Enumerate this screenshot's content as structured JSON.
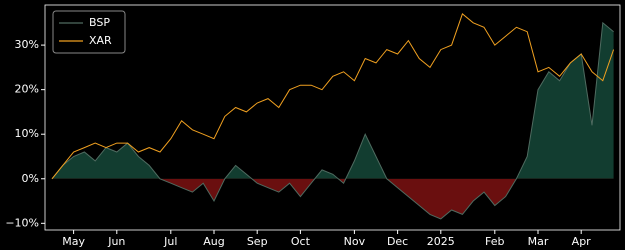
{
  "chart_data": {
    "type": "line",
    "categories": [
      null,
      null,
      "May",
      null,
      null,
      null,
      "Jun",
      null,
      null,
      null,
      null,
      "Jul",
      null,
      null,
      null,
      "Aug",
      null,
      null,
      null,
      "Sep",
      null,
      null,
      null,
      "Oct",
      null,
      null,
      null,
      null,
      "Nov",
      null,
      null,
      null,
      "Dec",
      null,
      null,
      null,
      "2025",
      null,
      null,
      null,
      null,
      "Feb",
      null,
      null,
      null,
      "Mar",
      null,
      null,
      null,
      "Apr",
      null,
      null,
      null
    ],
    "series": [
      {
        "name": "BSP",
        "color": "#4f6b60",
        "fill_above": "#123d30",
        "fill_below": "#6a0f0f",
        "values": [
          0,
          3,
          5,
          6,
          4,
          7,
          6,
          8,
          5,
          3,
          0,
          -1,
          -2,
          -3,
          -1,
          -5,
          0,
          3,
          1,
          -1,
          -2,
          -3,
          -1,
          -4,
          -1,
          2,
          1,
          -1,
          4,
          10,
          5,
          0,
          -2,
          -4,
          -6,
          -8,
          -9,
          -7,
          -8,
          -5,
          -3,
          -6,
          -4,
          0,
          5,
          20,
          24,
          22,
          26,
          28,
          12,
          35,
          33
        ]
      },
      {
        "name": "XAR",
        "color": "#f0a020",
        "values": [
          0,
          3,
          6,
          7,
          8,
          7,
          8,
          8,
          6,
          7,
          6,
          9,
          13,
          11,
          10,
          9,
          14,
          16,
          15,
          17,
          18,
          16,
          20,
          21,
          21,
          20,
          23,
          24,
          22,
          27,
          26,
          29,
          28,
          31,
          27,
          25,
          29,
          30,
          37,
          35,
          34,
          30,
          32,
          34,
          33,
          24,
          25,
          23,
          26,
          28,
          24,
          22,
          29
        ]
      }
    ],
    "ylim": [
      -11.5,
      39
    ],
    "yticks": [
      {
        "value": -10,
        "label": "−10%"
      },
      {
        "value": 0,
        "label": "0%"
      },
      {
        "value": 10,
        "label": "10%"
      },
      {
        "value": 20,
        "label": "20%"
      },
      {
        "value": 30,
        "label": "30%"
      }
    ],
    "legend": "upper left"
  }
}
